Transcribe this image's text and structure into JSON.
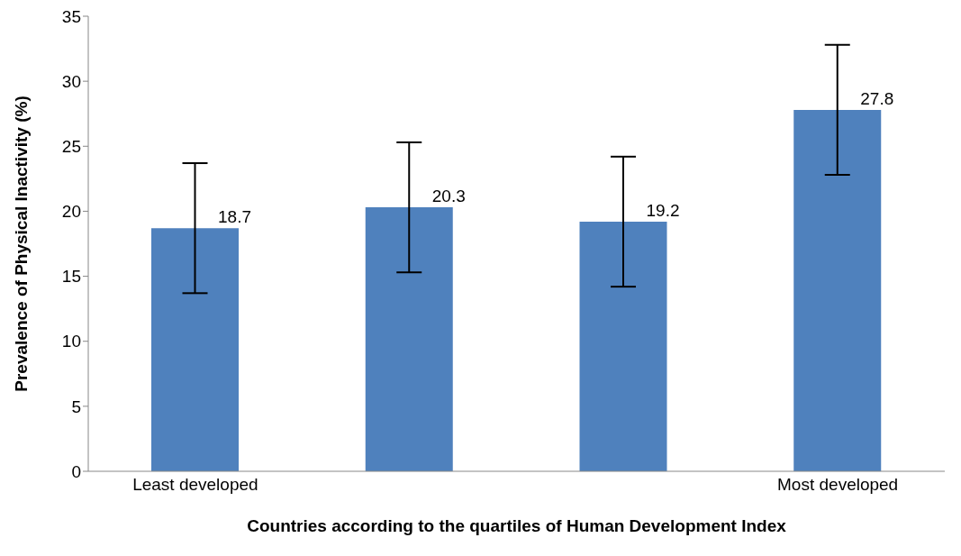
{
  "chart_data": {
    "type": "bar",
    "xlabel": "Countries according to the quartiles of Human Development Index",
    "ylabel": "Prevalence of Physical Inactivity (%)",
    "categories": [
      "Least developed",
      null,
      null,
      "Most developed"
    ],
    "values": [
      18.7,
      20.3,
      19.2,
      27.8
    ],
    "errors": [
      5,
      5,
      5,
      5
    ],
    "color": "#4f81bd",
    "ylim": [
      0,
      35
    ],
    "yticks": [
      0,
      5,
      10,
      15,
      20,
      25,
      30,
      35
    ],
    "data_labels": true,
    "grid": false,
    "legend": false
  }
}
